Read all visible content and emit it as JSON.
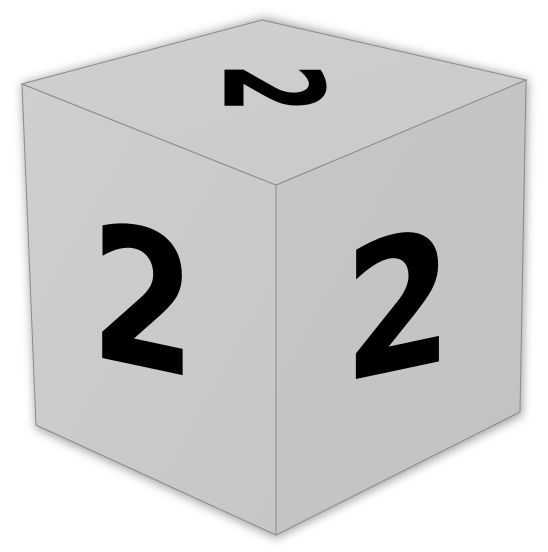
{
  "cube": {
    "top_face": {
      "digit": "2"
    },
    "left_face": {
      "digit": "2"
    },
    "right_face": {
      "digit": "2"
    }
  },
  "colors": {
    "face_left": "#c9c9c9",
    "face_right": "#c3c3c3",
    "face_top": "#cdcdcd",
    "edge": "#8a8a8a",
    "digit": "#000000",
    "shadow": "#7f8080"
  }
}
